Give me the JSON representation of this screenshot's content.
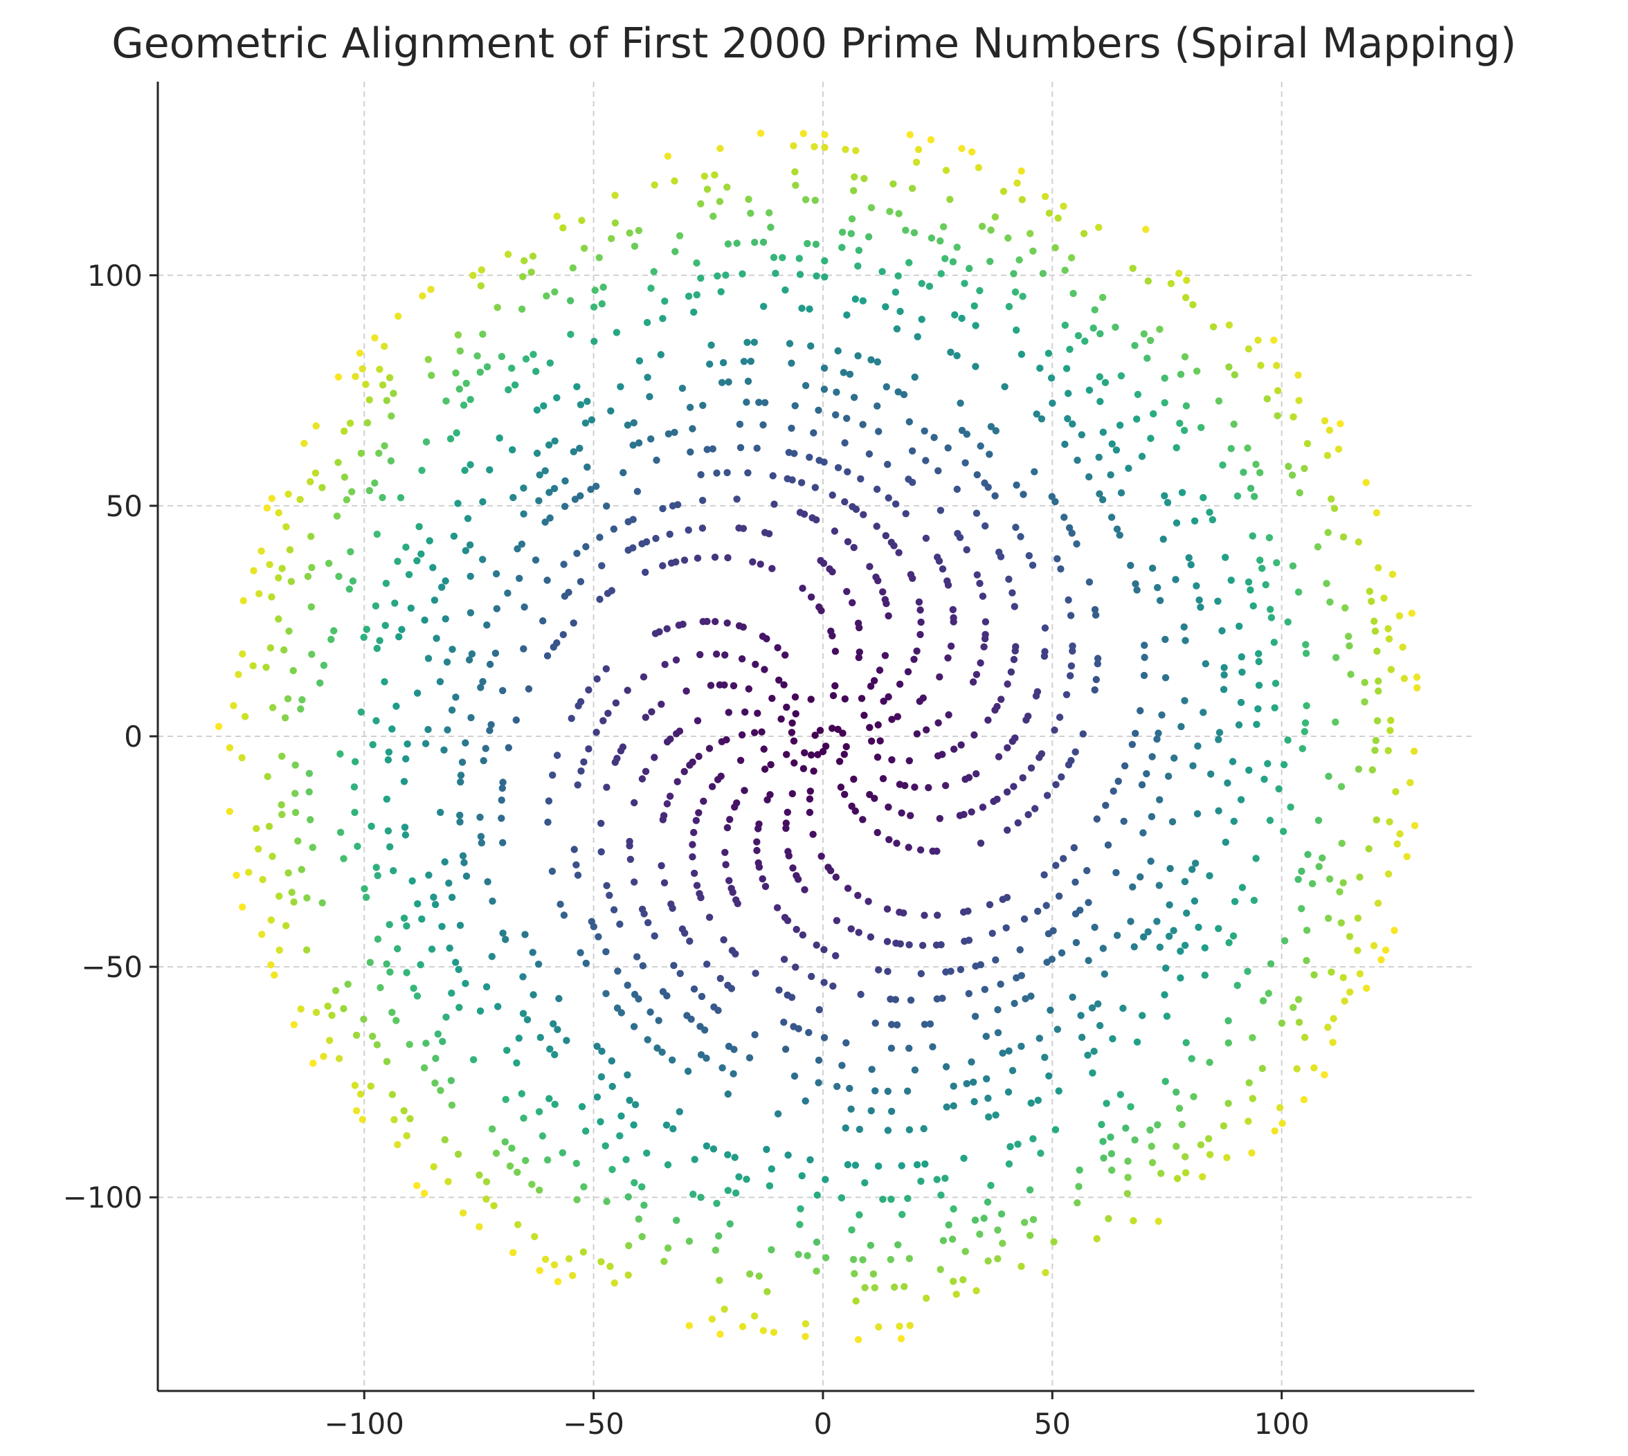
{
  "chart_data": {
    "type": "scatter",
    "title": "Geometric Alignment of First 2000 Prime Numbers (Spiral Mapping)",
    "xlabel": "",
    "ylabel": "",
    "xlim": [
      -145,
      142
    ],
    "ylim": [
      -142,
      142
    ],
    "grid": true,
    "grid_style": "dashed",
    "legend": "none",
    "colormap": "viridis",
    "color_by": "prime index",
    "point_color": "#21918c",
    "point_count": 2000,
    "mapping": "each prime p is plotted at x = r*cos(p), y = r*sin(p), with r = sqrt(p)",
    "radius_range": [
      1.41,
      131.0
    ],
    "xticks": [
      {
        "value": -100,
        "label": "−100"
      },
      {
        "value": -50,
        "label": "−50"
      },
      {
        "value": 0,
        "label": "0"
      },
      {
        "value": 50,
        "label": "50"
      },
      {
        "value": 100,
        "label": "100"
      }
    ],
    "yticks": [
      {
        "value": -100,
        "label": "−100"
      },
      {
        "value": -50,
        "label": "−50"
      },
      {
        "value": 0,
        "label": "0"
      },
      {
        "value": 50,
        "label": "50"
      },
      {
        "value": 100,
        "label": "100"
      }
    ]
  }
}
